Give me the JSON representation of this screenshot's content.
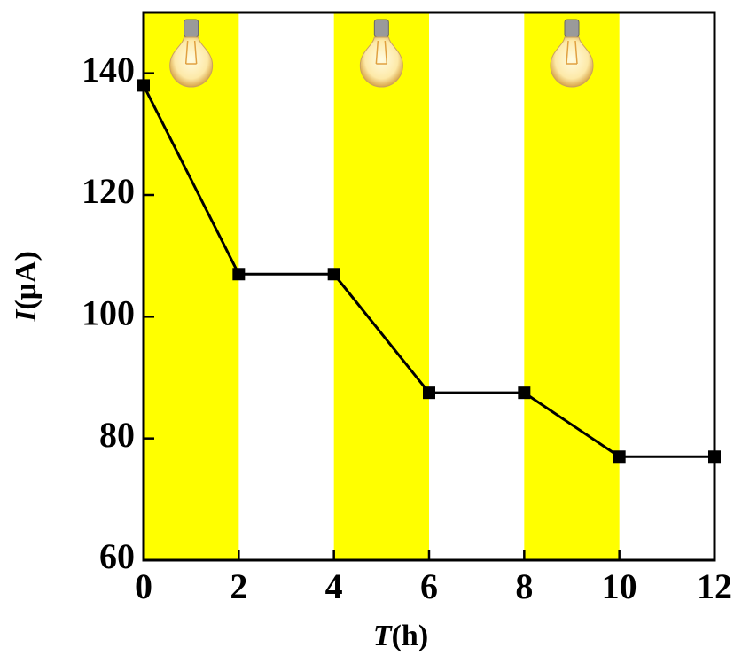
{
  "chart_data": {
    "type": "line",
    "xlabel": {
      "symbol": "T",
      "unit": "(h)"
    },
    "ylabel": {
      "symbol": "I",
      "unit": "(μA)"
    },
    "x": [
      0,
      2,
      4,
      6,
      8,
      10,
      12
    ],
    "series": [
      {
        "color": "#000000",
        "values": [
          138,
          107,
          107,
          87.5,
          87.5,
          77,
          77
        ]
      }
    ],
    "xlim": [
      0,
      12
    ],
    "xticks": [
      0,
      2,
      4,
      6,
      8,
      10,
      12
    ],
    "ylim": [
      60,
      150
    ],
    "yticks": [
      60,
      80,
      100,
      120,
      140
    ],
    "highlight_spans": [
      [
        0,
        2
      ],
      [
        4,
        6
      ],
      [
        8,
        10
      ]
    ],
    "highlight_color": "#ffff00"
  }
}
